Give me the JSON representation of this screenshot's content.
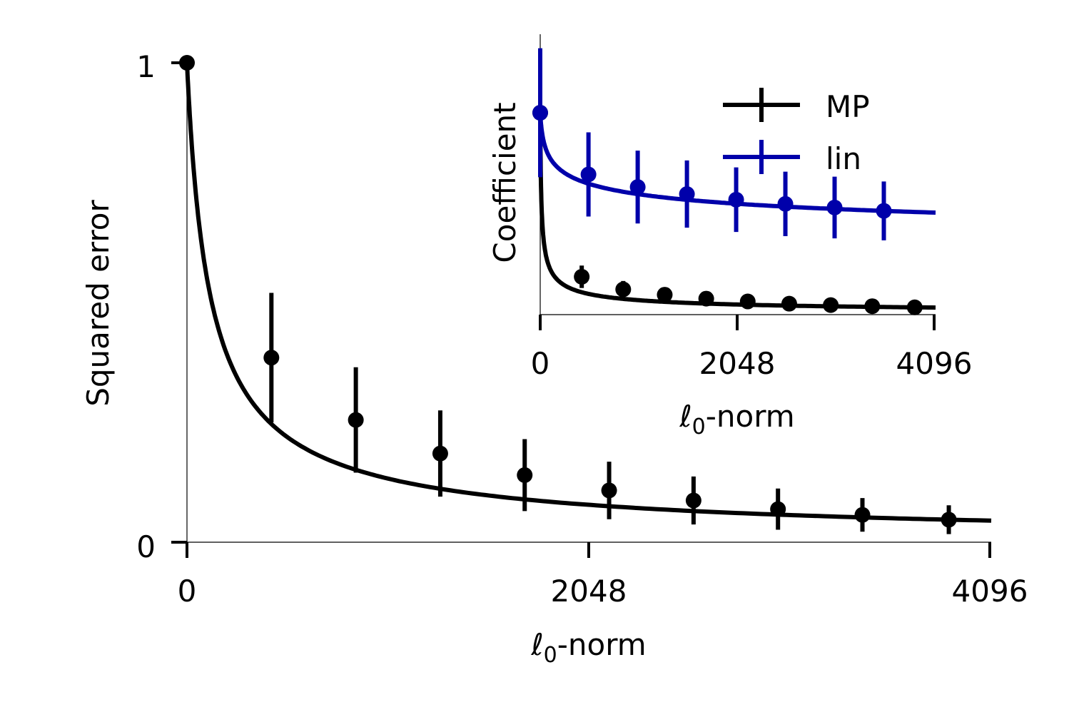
{
  "chart_data": [
    {
      "type": "line",
      "panel": "main",
      "xlabel_main": "ℓ",
      "xlabel_sub": "0",
      "xlabel_tail": "-norm",
      "ylabel": "Squared error",
      "xlim": [
        0,
        4096
      ],
      "ylim": [
        0,
        1
      ],
      "xticks": [
        "0",
        "2048",
        "4096"
      ],
      "yticks": [
        "0",
        "1"
      ],
      "grid": false,
      "series": [
        {
          "color": "#000000",
          "x": [
            0,
            430,
            860,
            1290,
            1720,
            2150,
            2580,
            3010,
            3440,
            3880
          ],
          "y": [
            1.0,
            0.385,
            0.255,
            0.185,
            0.14,
            0.108,
            0.087,
            0.069,
            0.057,
            0.047
          ],
          "yerr": [
            0.0,
            0.135,
            0.11,
            0.09,
            0.075,
            0.06,
            0.05,
            0.043,
            0.035,
            0.03
          ]
        }
      ],
      "curve": {
        "x0": 0,
        "x1": 4096,
        "y_end": 0.042
      }
    },
    {
      "type": "line",
      "panel": "inset",
      "xlabel_main": "ℓ",
      "xlabel_sub": "0",
      "xlabel_tail": "-norm",
      "ylabel": "Coefficient",
      "xlim": [
        0,
        4096
      ],
      "ylim": [
        0,
        1
      ],
      "xticks": [
        "0",
        "2048",
        "4096"
      ],
      "legend_position": "top-right",
      "grid": false,
      "series": [
        {
          "name": "MP",
          "color": "#000000",
          "x": [
            0,
            430,
            860,
            1290,
            1720,
            2150,
            2580,
            3010,
            3440,
            3880
          ],
          "y": [
            0.72,
            0.135,
            0.09,
            0.071,
            0.057,
            0.047,
            0.039,
            0.034,
            0.03,
            0.026
          ],
          "yerr": [
            0.0,
            0.04,
            0.03,
            0.0,
            0.0,
            0.0,
            0.0,
            0.0,
            0.0,
            0.0
          ]
        },
        {
          "name": "lin",
          "color": "#0000aa",
          "x": [
            0,
            500,
            1010,
            1520,
            2030,
            2540,
            3050,
            3560
          ],
          "y": [
            0.72,
            0.5,
            0.455,
            0.43,
            0.41,
            0.395,
            0.382,
            0.37
          ],
          "yerr": [
            0.23,
            0.15,
            0.13,
            0.12,
            0.115,
            0.115,
            0.11,
            0.105
          ]
        }
      ]
    }
  ]
}
